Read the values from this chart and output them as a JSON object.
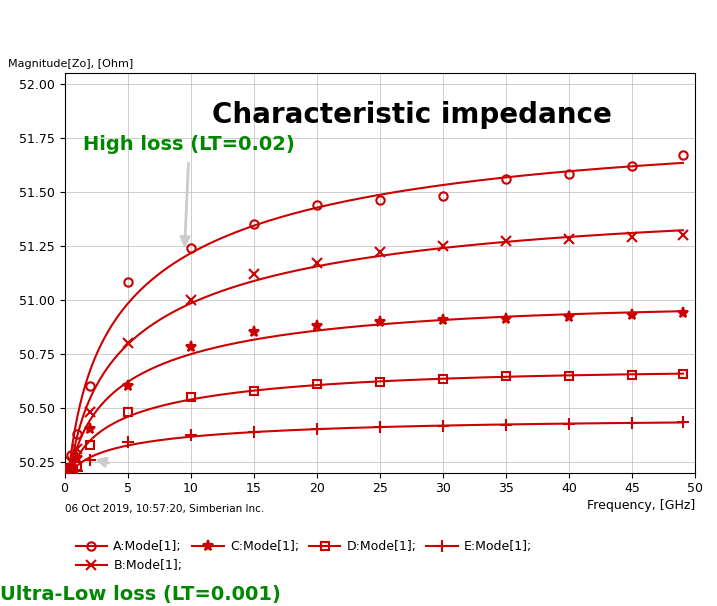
{
  "title": "Characteristic impedance",
  "ylabel": "Magnitude[Zo], [Ohm]",
  "xlabel": "Frequency, [GHz]",
  "timestamp": "06 Oct 2019, 10:57:20, Simberian Inc.",
  "xlim": [
    0,
    50
  ],
  "ylim": [
    50.2,
    52.05
  ],
  "yticks": [
    50.25,
    50.5,
    50.75,
    51.0,
    51.25,
    51.5,
    51.75,
    52.0
  ],
  "xticks": [
    0,
    5,
    10,
    15,
    20,
    25,
    30,
    35,
    40,
    45,
    50
  ],
  "high_loss_label": "High loss (LT=0.02)",
  "ultra_low_loss_label": "Ultra-Low loss (LT=0.001)",
  "line_color": "#CC0000",
  "annotation_color": "#008800",
  "series": {
    "A": {
      "label": "A:Mode[1];",
      "marker": "o",
      "x": [
        0.05,
        0.2,
        0.5,
        1.0,
        2.0,
        5.0,
        10.0,
        15.0,
        20.0,
        25.0,
        30.0,
        35.0,
        40.0,
        45.0,
        49.0
      ],
      "y": [
        50.2,
        50.22,
        50.28,
        50.38,
        50.6,
        51.08,
        51.24,
        51.35,
        51.44,
        51.46,
        51.48,
        51.56,
        51.58,
        51.62,
        51.67
      ]
    },
    "B": {
      "label": "B:Mode[1];",
      "marker": "x",
      "x": [
        0.05,
        0.2,
        0.5,
        1.0,
        2.0,
        5.0,
        10.0,
        15.0,
        20.0,
        25.0,
        30.0,
        35.0,
        40.0,
        45.0,
        49.0
      ],
      "y": [
        50.2,
        50.21,
        50.25,
        50.31,
        50.48,
        50.8,
        51.0,
        51.12,
        51.17,
        51.22,
        51.25,
        51.27,
        51.28,
        51.29,
        51.3
      ]
    },
    "C": {
      "label": "C:Mode[1];",
      "marker": "*",
      "x": [
        0.05,
        0.2,
        0.5,
        1.0,
        2.0,
        5.0,
        10.0,
        15.0,
        20.0,
        25.0,
        30.0,
        35.0,
        40.0,
        45.0,
        49.0
      ],
      "y": [
        50.2,
        50.21,
        50.23,
        50.27,
        50.4,
        50.6,
        50.78,
        50.85,
        50.88,
        50.895,
        50.905,
        50.91,
        50.92,
        50.93,
        50.94
      ]
    },
    "D": {
      "label": "D:Mode[1];",
      "marker": "s",
      "x": [
        0.05,
        0.2,
        0.5,
        1.0,
        2.0,
        5.0,
        10.0,
        15.0,
        20.0,
        25.0,
        30.0,
        35.0,
        40.0,
        45.0,
        49.0
      ],
      "y": [
        50.2,
        50.2,
        50.21,
        50.23,
        50.33,
        50.48,
        50.55,
        50.58,
        50.61,
        50.62,
        50.635,
        50.645,
        50.648,
        50.651,
        50.655
      ]
    },
    "E": {
      "label": "E:Mode[1];",
      "marker": "+",
      "x": [
        0.05,
        0.2,
        0.5,
        1.0,
        2.0,
        5.0,
        10.0,
        15.0,
        20.0,
        25.0,
        30.0,
        35.0,
        40.0,
        45.0,
        49.0
      ],
      "y": [
        50.2,
        50.2,
        50.205,
        50.21,
        50.26,
        50.34,
        50.375,
        50.39,
        50.4,
        50.41,
        50.415,
        50.42,
        50.425,
        50.43,
        50.435
      ]
    }
  },
  "bg_color": "#ffffff",
  "plot_bg_color": "#ffffff",
  "grid_color": "#bbbbbb",
  "title_fontsize": 20,
  "label_fontsize": 9,
  "legend_fontsize": 9,
  "annotation_fontsize": 14
}
